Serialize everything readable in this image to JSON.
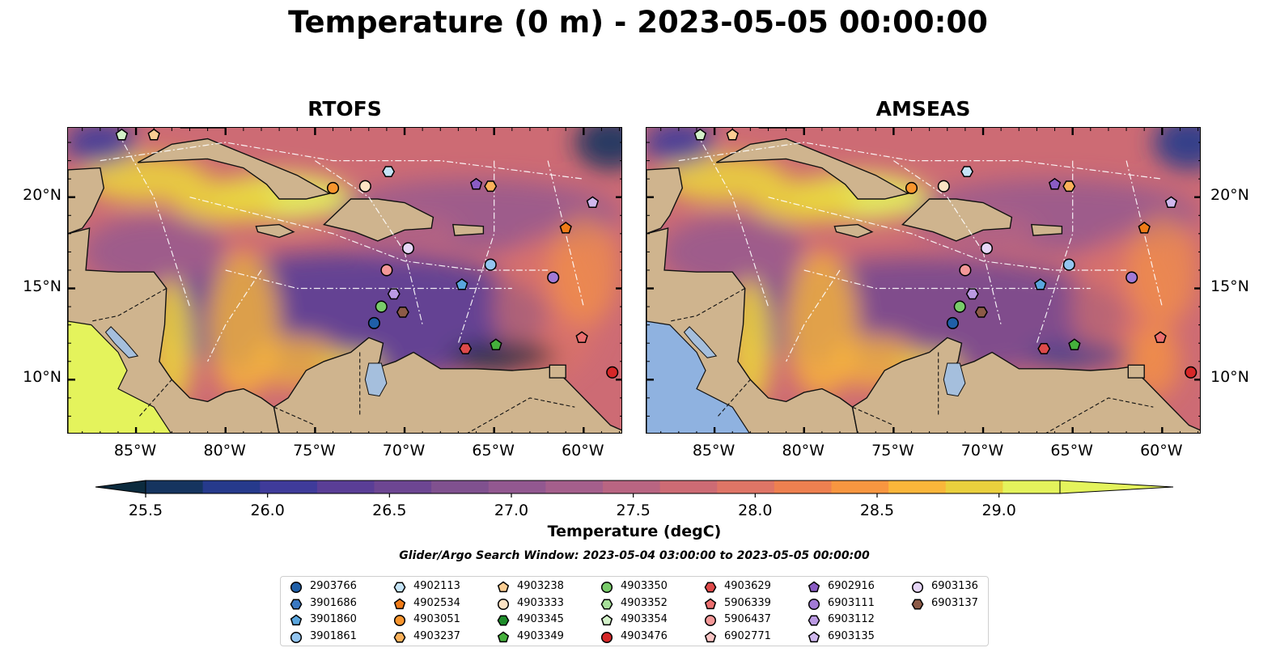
{
  "title": "Temperature (0 m) - 2023-05-05 00:00:00",
  "panels": [
    {
      "title": "RTOFS"
    },
    {
      "title": "AMSEAS"
    }
  ],
  "map": {
    "lon_range": [
      -88.8,
      -57.8
    ],
    "lat_range": [
      7.0,
      23.8
    ],
    "xticks": [
      -85,
      -80,
      -75,
      -70,
      -65,
      -60
    ],
    "xtick_labels": [
      "85°W",
      "80°W",
      "75°W",
      "70°W",
      "65°W",
      "60°W"
    ],
    "yticks": [
      10,
      15,
      20
    ],
    "ytick_labels": [
      "10°N",
      "15°N",
      "20°N"
    ],
    "land_color": "#cfb48e",
    "inland_water_color": "#a5bfdd",
    "masked_ocean_color_amseas": "#8fb2e0"
  },
  "colorbar": {
    "label": "Temperature (degC)",
    "min": 25.5,
    "max": 29.25,
    "step": 0.25,
    "ticks": [
      25.5,
      26.0,
      26.5,
      27.0,
      27.5,
      28.0,
      28.5,
      29.0
    ],
    "tick_labels": [
      "25.5",
      "26.0",
      "26.5",
      "27.0",
      "27.5",
      "28.0",
      "28.5",
      "29.0"
    ],
    "colors": [
      "#0c2b3e",
      "#15345f",
      "#263a8c",
      "#3f3b9a",
      "#5a3e96",
      "#6d4692",
      "#80518f",
      "#925890",
      "#a55f8c",
      "#b96582",
      "#cd6b74",
      "#df7566",
      "#ee8050",
      "#f89640",
      "#fab63a",
      "#ead03d",
      "#e4f35c"
    ]
  },
  "search_window": "Glider/Argo Search Window: 2023-05-04 03:00:00 to 2023-05-05 00:00:00",
  "legend": [
    {
      "id": "2903766",
      "marker": "circle",
      "color": "#1f5fa8"
    },
    {
      "id": "3901686",
      "marker": "hexagon",
      "color": "#3a78c2"
    },
    {
      "id": "3901860",
      "marker": "pentagon",
      "color": "#5aa6de"
    },
    {
      "id": "3901861",
      "marker": "circle",
      "color": "#93c5f0"
    },
    {
      "id": "4902113",
      "marker": "hexagon",
      "color": "#c5e4f7"
    },
    {
      "id": "4902534",
      "marker": "pentagon",
      "color": "#f07b18"
    },
    {
      "id": "4903051",
      "marker": "circle",
      "color": "#f8952d"
    },
    {
      "id": "4903237",
      "marker": "hexagon",
      "color": "#fbb15a"
    },
    {
      "id": "4903238",
      "marker": "pentagon",
      "color": "#fcce93"
    },
    {
      "id": "4903333",
      "marker": "circle",
      "color": "#fde3c4"
    },
    {
      "id": "4903345",
      "marker": "hexagon",
      "color": "#1e8c2a"
    },
    {
      "id": "4903349",
      "marker": "pentagon",
      "color": "#45b03c"
    },
    {
      "id": "4903350",
      "marker": "circle",
      "color": "#79cc6a"
    },
    {
      "id": "4903352",
      "marker": "hexagon",
      "color": "#a7df9a"
    },
    {
      "id": "4903354",
      "marker": "pentagon",
      "color": "#d3f1c9"
    },
    {
      "id": "4903476",
      "marker": "circle",
      "color": "#d62728"
    },
    {
      "id": "4903629",
      "marker": "hexagon",
      "color": "#de4a4a"
    },
    {
      "id": "5906339",
      "marker": "pentagon",
      "color": "#ec6f6f"
    },
    {
      "id": "5906437",
      "marker": "circle",
      "color": "#f49898"
    },
    {
      "id": "6902771",
      "marker": "pentagon",
      "color": "#f9c4c4"
    },
    {
      "id": "6902916",
      "marker": "pentagon",
      "color": "#8a5cc4"
    },
    {
      "id": "6903111",
      "marker": "circle",
      "color": "#a27ad6"
    },
    {
      "id": "6903112",
      "marker": "hexagon",
      "color": "#bb9ae3"
    },
    {
      "id": "6903135",
      "marker": "pentagon",
      "color": "#d0b8ee"
    },
    {
      "id": "6903136",
      "marker": "circle",
      "color": "#e6d6f7"
    },
    {
      "id": "6903137",
      "marker": "hexagon",
      "color": "#8c5a47"
    }
  ],
  "observations": [
    {
      "id": "4903354",
      "lon": -85.8,
      "lat": 23.4
    },
    {
      "id": "4903238",
      "lon": -84.0,
      "lat": 23.4
    },
    {
      "id": "4903051",
      "lon": -74.0,
      "lat": 20.5
    },
    {
      "id": "4903333",
      "lon": -72.2,
      "lat": 20.6
    },
    {
      "id": "4902113",
      "lon": -70.9,
      "lat": 21.4
    },
    {
      "id": "6902916",
      "lon": -66.0,
      "lat": 20.7
    },
    {
      "id": "4903237",
      "lon": -65.2,
      "lat": 20.6
    },
    {
      "id": "6903135",
      "lon": -59.5,
      "lat": 19.7
    },
    {
      "id": "4902534",
      "lon": -61.0,
      "lat": 18.3
    },
    {
      "id": "6903136",
      "lon": -69.8,
      "lat": 17.2
    },
    {
      "id": "5906437",
      "lon": -71.0,
      "lat": 16.0
    },
    {
      "id": "3901861",
      "lon": -65.2,
      "lat": 16.3
    },
    {
      "id": "6903111",
      "lon": -61.7,
      "lat": 15.6
    },
    {
      "id": "3901860",
      "lon": -66.8,
      "lat": 15.2
    },
    {
      "id": "6903112",
      "lon": -70.6,
      "lat": 14.7
    },
    {
      "id": "4903350",
      "lon": -71.3,
      "lat": 14.0
    },
    {
      "id": "6903137",
      "lon": -70.1,
      "lat": 13.7
    },
    {
      "id": "2903766",
      "lon": -71.7,
      "lat": 13.1
    },
    {
      "id": "5906339",
      "lon": -60.1,
      "lat": 12.3
    },
    {
      "id": "4903349",
      "lon": -64.9,
      "lat": 11.9
    },
    {
      "id": "4903629",
      "lon": -66.6,
      "lat": 11.7
    },
    {
      "id": "4903476",
      "lon": -58.4,
      "lat": 10.4
    }
  ]
}
